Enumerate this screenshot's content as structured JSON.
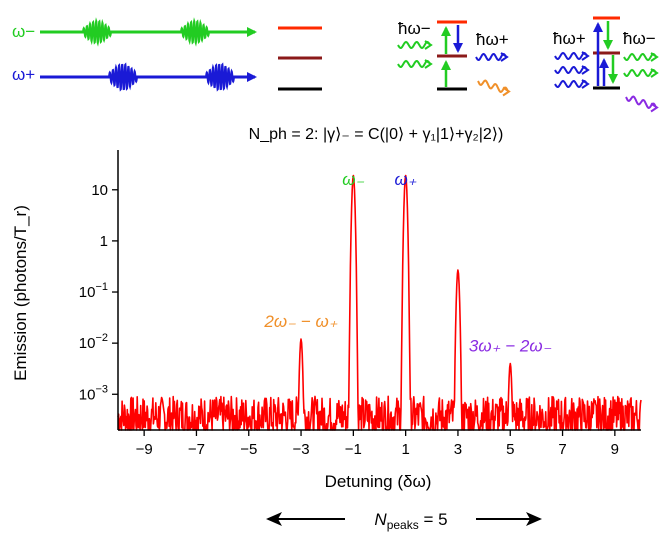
{
  "top_diagram": {
    "pulse_labels": {
      "omega_minus": "ω−",
      "omega_plus": "ω+"
    },
    "level_diagram_labels": {
      "hbar_omega_minus_a": "ħω−",
      "hbar_omega_plus_a": "ħω+",
      "hbar_omega_plus_b": "ħω+",
      "hbar_omega_minus_b": "ħω−"
    },
    "colors": {
      "green": "#22cc22",
      "blue": "#1a1ad6",
      "red": "#ff2a00",
      "darkred": "#8b1a1a",
      "orange": "#f0902a",
      "purple": "#8a2be2"
    }
  },
  "chart_data": {
    "type": "line",
    "title": "N_ph = 2: |γ⟩₋ = C(|0⟩ + γ₁|1⟩+γ₂|2⟩)",
    "xlabel": "Detuning (δω)",
    "ylabel": "Emission (photons/T_r)",
    "yscale": "log",
    "xlim": [
      -10,
      10
    ],
    "ylim": [
      0.0002,
      60
    ],
    "xticks": [
      -9,
      -7,
      -5,
      -3,
      -1,
      1,
      3,
      5,
      7,
      9
    ],
    "xtick_labels": [
      "−9",
      "−7",
      "−5",
      "−3",
      "−1",
      "1",
      "3",
      "5",
      "7",
      "9"
    ],
    "yticks": [
      0.001,
      0.01,
      0.1,
      1,
      10
    ],
    "ytick_labels": [
      "10−3",
      "10−2",
      "10−1",
      "1",
      "10"
    ],
    "series_color": "#ff0000",
    "noise_floor": 0.0004,
    "peaks": [
      {
        "x": -3,
        "y": 0.012
      },
      {
        "x": -1,
        "y": 19
      },
      {
        "x": 1,
        "y": 19
      },
      {
        "x": 3,
        "y": 0.27
      },
      {
        "x": 5,
        "y": 0.004
      }
    ],
    "annotations": [
      {
        "text": "2ω₋ − ω₊",
        "x": -3,
        "color": "#f0902a"
      },
      {
        "text": "ω₋",
        "x": -1,
        "color": "#22cc22"
      },
      {
        "text": "ω₊",
        "x": 1,
        "color": "#1a1ad6"
      },
      {
        "text": "3ω₊ − 2ω₋",
        "x": 5,
        "color": "#8a2be2"
      }
    ]
  },
  "footer": {
    "npeaks_label": "N",
    "npeaks_sub": "peaks",
    "npeaks_value": " = 5"
  }
}
